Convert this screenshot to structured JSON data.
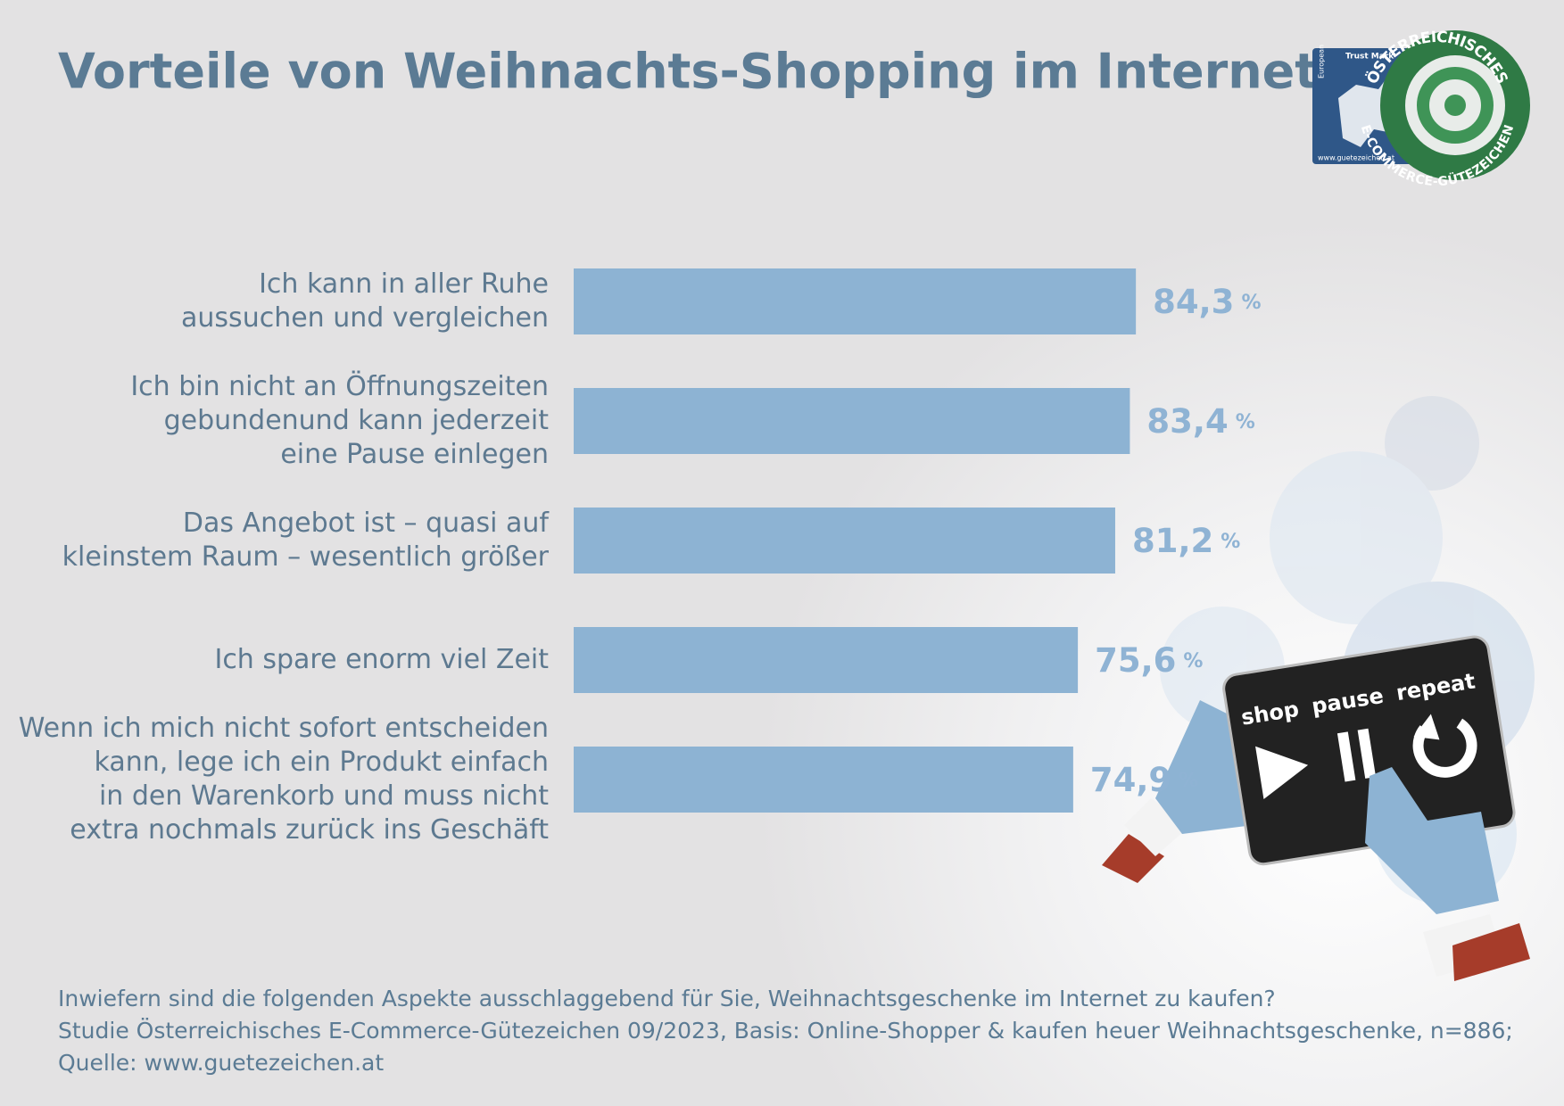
{
  "chart_data": {
    "type": "bar",
    "title": "Vorteile von Weihnachts-Shopping im Internet",
    "categories": [
      [
        "Ich kann in aller Ruhe",
        "aussuchen und vergleichen"
      ],
      [
        "Ich bin nicht an Öffnungszeiten",
        "gebundenund kann jederzeit",
        "eine Pause einlegen"
      ],
      [
        "Das Angebot ist – quasi auf",
        "kleinstem Raum – wesentlich größer"
      ],
      [
        "Ich spare enorm viel Zeit"
      ],
      [
        "Wenn ich mich nicht sofort entscheiden",
        "kann, lege ich ein Produkt einfach",
        "in den Warenkorb und muss nicht",
        "extra nochmals zurück ins Geschäft"
      ]
    ],
    "values": [
      84.3,
      83.4,
      81.2,
      75.6,
      74.9
    ],
    "value_labels": [
      "84,3",
      "83,4",
      "81,2",
      "75,6",
      "74,9"
    ],
    "unit": "%",
    "color": "#8db3d3",
    "notes": [
      "Inwiefern sind die folgenden Aspekte ausschlaggebend für Sie, Weihnachtsgeschenke im Internet zu kaufen?",
      "Studie Österreichisches E-Commerce-Gütezeichen 09/2023, Basis: Online-Shopper & kaufen heuer Weihnachtsgeschenke, n=886;",
      "Quelle: www.guetezeichen.at"
    ]
  },
  "logo": {
    "trust_mark": "Trust Mark",
    "european": "European",
    "url": "www.guetezeichen.at",
    "ring_top": "ÖSTERREICHISCHES",
    "ring_bottom": "E-COMMERCE-GÜTEZEICHEN"
  },
  "illustration": {
    "buttons": [
      "shop",
      "pause",
      "repeat"
    ]
  }
}
